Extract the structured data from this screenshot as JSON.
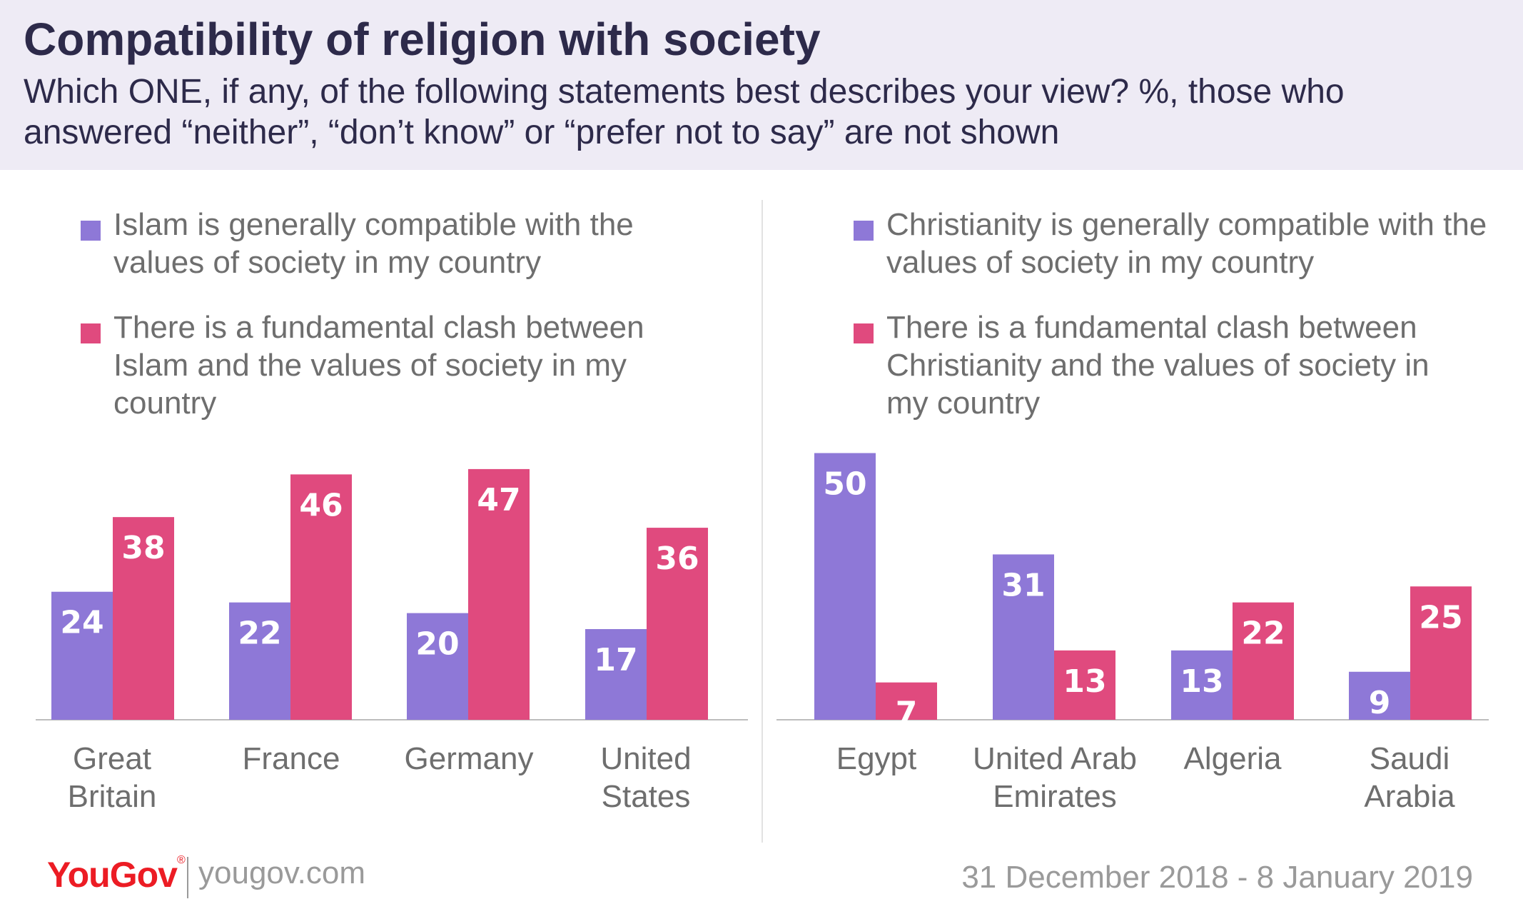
{
  "title": "Compatibility of religion with society",
  "subtitle": "Which ONE, if any, of the following statements best describes your view? %, those who answered “neither”, “don’t know” or “prefer not to say” are not shown",
  "colors": {
    "compatible": "#8e78d7",
    "clash": "#e04a7e",
    "header_bg": "#eeebf5"
  },
  "chart_data": [
    {
      "type": "bar",
      "categories": [
        "Great Britain",
        "France",
        "Germany",
        "United States"
      ],
      "series": [
        {
          "name": "Islam is generally compatible with the values of society in my country",
          "values": [
            24,
            22,
            20,
            17
          ]
        },
        {
          "name": "There is a fundamental clash between Islam and the values of society in my country",
          "values": [
            38,
            46,
            47,
            36
          ]
        }
      ],
      "ylim": [
        0,
        50
      ],
      "legend_position": "top-left",
      "grid": false
    },
    {
      "type": "bar",
      "categories": [
        "Egypt",
        "United Arab Emirates",
        "Algeria",
        "Saudi Arabia"
      ],
      "series": [
        {
          "name": "Christianity is generally compatible with the values of society in my country",
          "values": [
            50,
            31,
            13,
            9
          ]
        },
        {
          "name": "There is a fundamental clash between Christianity and the values of society in my country",
          "values": [
            7,
            13,
            22,
            25
          ]
        }
      ],
      "ylim": [
        0,
        50
      ],
      "legend_position": "top-left",
      "grid": false
    }
  ],
  "footer": {
    "logo": "YouGov",
    "site": "yougov.com",
    "date": "31 December 2018 - 8 January 2019"
  }
}
